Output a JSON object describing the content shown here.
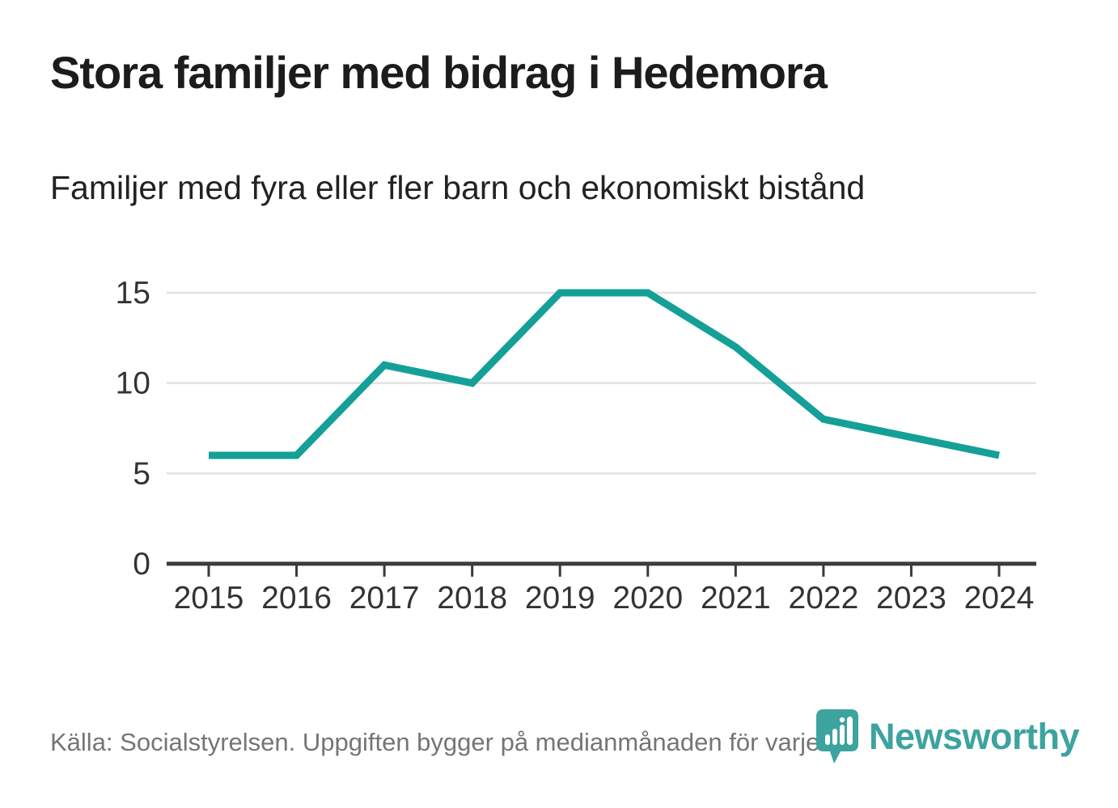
{
  "title": "Stora familjer med bidrag i Hedemora",
  "subtitle": "Familjer med fyra eller fler barn och ekonomiskt bistånd",
  "footer": {
    "source": "Källa: Socialstyrelsen. Uppgiften bygger på medianmånaden för varje år"
  },
  "logo": {
    "brand": "Newsworthy",
    "icon": "newsworthy-pin-barchart-icon",
    "color": "#3da39f"
  },
  "colors": {
    "line": "#14a096",
    "grid": "#e2e2e2",
    "axis": "#3b3b3b",
    "tick_label": "#333333",
    "title_text": "#1c1c1c",
    "muted_text": "#757575"
  },
  "chart_data": {
    "type": "line",
    "title": "Stora familjer med bidrag i Hedemora",
    "subtitle": "Familjer med fyra eller fler barn och ekonomiskt bistånd",
    "x": [
      2015,
      2016,
      2017,
      2018,
      2019,
      2020,
      2021,
      2022,
      2023,
      2024
    ],
    "series": [
      {
        "name": "Familjer med fyra eller fler barn och ekonomiskt bistånd",
        "values": [
          6,
          6,
          11,
          10,
          15,
          15,
          12,
          8,
          7,
          6
        ]
      }
    ],
    "xlabel": "",
    "ylabel": "",
    "ylim": [
      0,
      15
    ],
    "yticks": [
      0,
      5,
      10,
      15
    ],
    "grid": true,
    "legend": false,
    "line_color": "#14a096",
    "line_width": 9
  }
}
